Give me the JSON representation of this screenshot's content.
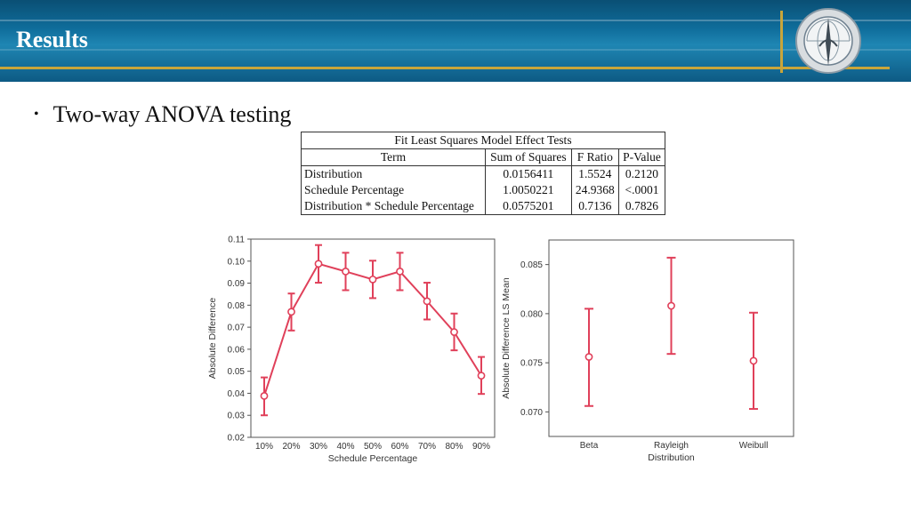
{
  "header": {
    "title": "Results"
  },
  "bullet": {
    "text": "Two-way ANOVA testing"
  },
  "table": {
    "caption": "Fit Least Squares Model Effect Tests",
    "columns": [
      "Term",
      "Sum of Squares",
      "F Ratio",
      "P-Value"
    ],
    "rows": [
      [
        "Distribution",
        "0.0156411",
        "1.5524",
        "0.2120"
      ],
      [
        "Schedule Percentage",
        "1.0050221",
        "24.9368",
        "<.0001"
      ],
      [
        "Distribution * Schedule Percentage",
        "0.0575201",
        "0.7136",
        "0.7826"
      ]
    ]
  },
  "colors": {
    "series": "#e0405a",
    "header_gold": "#c9a53a"
  },
  "chart_data": [
    {
      "type": "line",
      "title": "",
      "xlabel": "Schedule Percentage",
      "ylabel": "Absolute Difference",
      "categories": [
        "10%",
        "20%",
        "30%",
        "40%",
        "50%",
        "60%",
        "70%",
        "80%",
        "90%"
      ],
      "values": [
        0.0388,
        0.077,
        0.0988,
        0.0953,
        0.0917,
        0.0953,
        0.0818,
        0.0678,
        0.048
      ],
      "error_low": [
        0.03,
        0.0685,
        0.0902,
        0.0868,
        0.0832,
        0.0868,
        0.0735,
        0.0595,
        0.0397
      ],
      "error_high": [
        0.0472,
        0.0853,
        0.1073,
        0.1038,
        0.1002,
        0.1038,
        0.0902,
        0.0762,
        0.0565
      ],
      "ylim": [
        0.02,
        0.11
      ],
      "yticks": [
        "0.02",
        "0.03",
        "0.04",
        "0.05",
        "0.06",
        "0.07",
        "0.08",
        "0.09",
        "0.10",
        "0.11"
      ]
    },
    {
      "type": "scatter",
      "title": "",
      "xlabel": "Distribution",
      "ylabel": "Absolute Difference LS Mean",
      "categories": [
        "Beta",
        "Rayleigh",
        "Weibull"
      ],
      "values": [
        0.0756,
        0.0808,
        0.0752
      ],
      "error_low": [
        0.0706,
        0.0759,
        0.0703
      ],
      "error_high": [
        0.0805,
        0.0857,
        0.0801
      ],
      "ylim": [
        0.0675,
        0.0875
      ],
      "yticks": [
        "0.070",
        "0.075",
        "0.080",
        "0.085"
      ]
    }
  ]
}
